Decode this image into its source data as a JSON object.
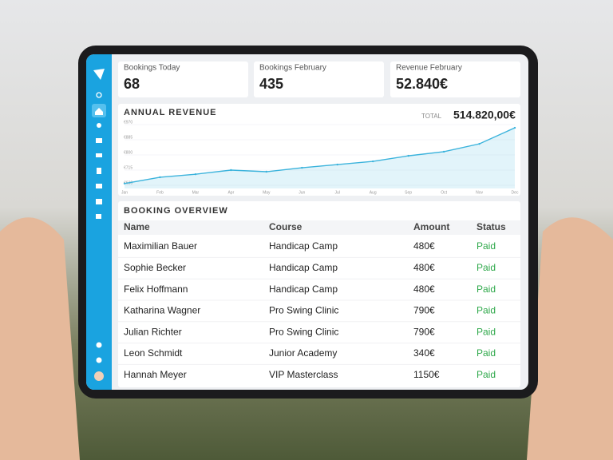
{
  "cards": [
    {
      "label": "Bookings Today",
      "value": "68"
    },
    {
      "label": "Bookings February",
      "value": "435"
    },
    {
      "label": "Revenue February",
      "value": "52.840€"
    }
  ],
  "total": {
    "label": "TOTAL",
    "value": "514.820,00€"
  },
  "chart_data": {
    "type": "line",
    "title": "ANNUAL REVENUE",
    "categories": [
      "Jan",
      "Feb",
      "Mar",
      "Apr",
      "May",
      "Jun",
      "Jul",
      "Aug",
      "Sep",
      "Oct",
      "Nov",
      "Dec"
    ],
    "values": [
      640,
      675,
      692,
      715,
      706,
      728,
      746,
      764,
      795,
      818,
      862,
      952
    ],
    "color": "#3bb3dc",
    "ylim": [
      630,
      970
    ],
    "yticks": [
      {
        "value": 630,
        "label": "€630"
      },
      {
        "value": 715,
        "label": "€715"
      },
      {
        "value": 800,
        "label": "€800"
      },
      {
        "value": 885,
        "label": "€885"
      },
      {
        "value": 970,
        "label": "€970"
      }
    ],
    "grid": true
  },
  "table": {
    "title": "BOOKING OVERVIEW",
    "columns": [
      "Name",
      "Course",
      "Amount",
      "Status"
    ],
    "rows": [
      [
        "Maximilian Bauer",
        "Handicap Camp",
        "480€",
        "Paid"
      ],
      [
        "Sophie Becker",
        "Handicap Camp",
        "480€",
        "Paid"
      ],
      [
        "Felix Hoffmann",
        "Handicap Camp",
        "480€",
        "Paid"
      ],
      [
        "Katharina Wagner",
        "Pro Swing Clinic",
        "790€",
        "Paid"
      ],
      [
        "Julian Richter",
        "Pro Swing Clinic",
        "790€",
        "Paid"
      ],
      [
        "Leon Schmidt",
        "Junior Academy",
        "340€",
        "Paid"
      ],
      [
        "Hannah Meyer",
        "VIP Masterclass",
        "1150€",
        "Paid"
      ]
    ]
  }
}
